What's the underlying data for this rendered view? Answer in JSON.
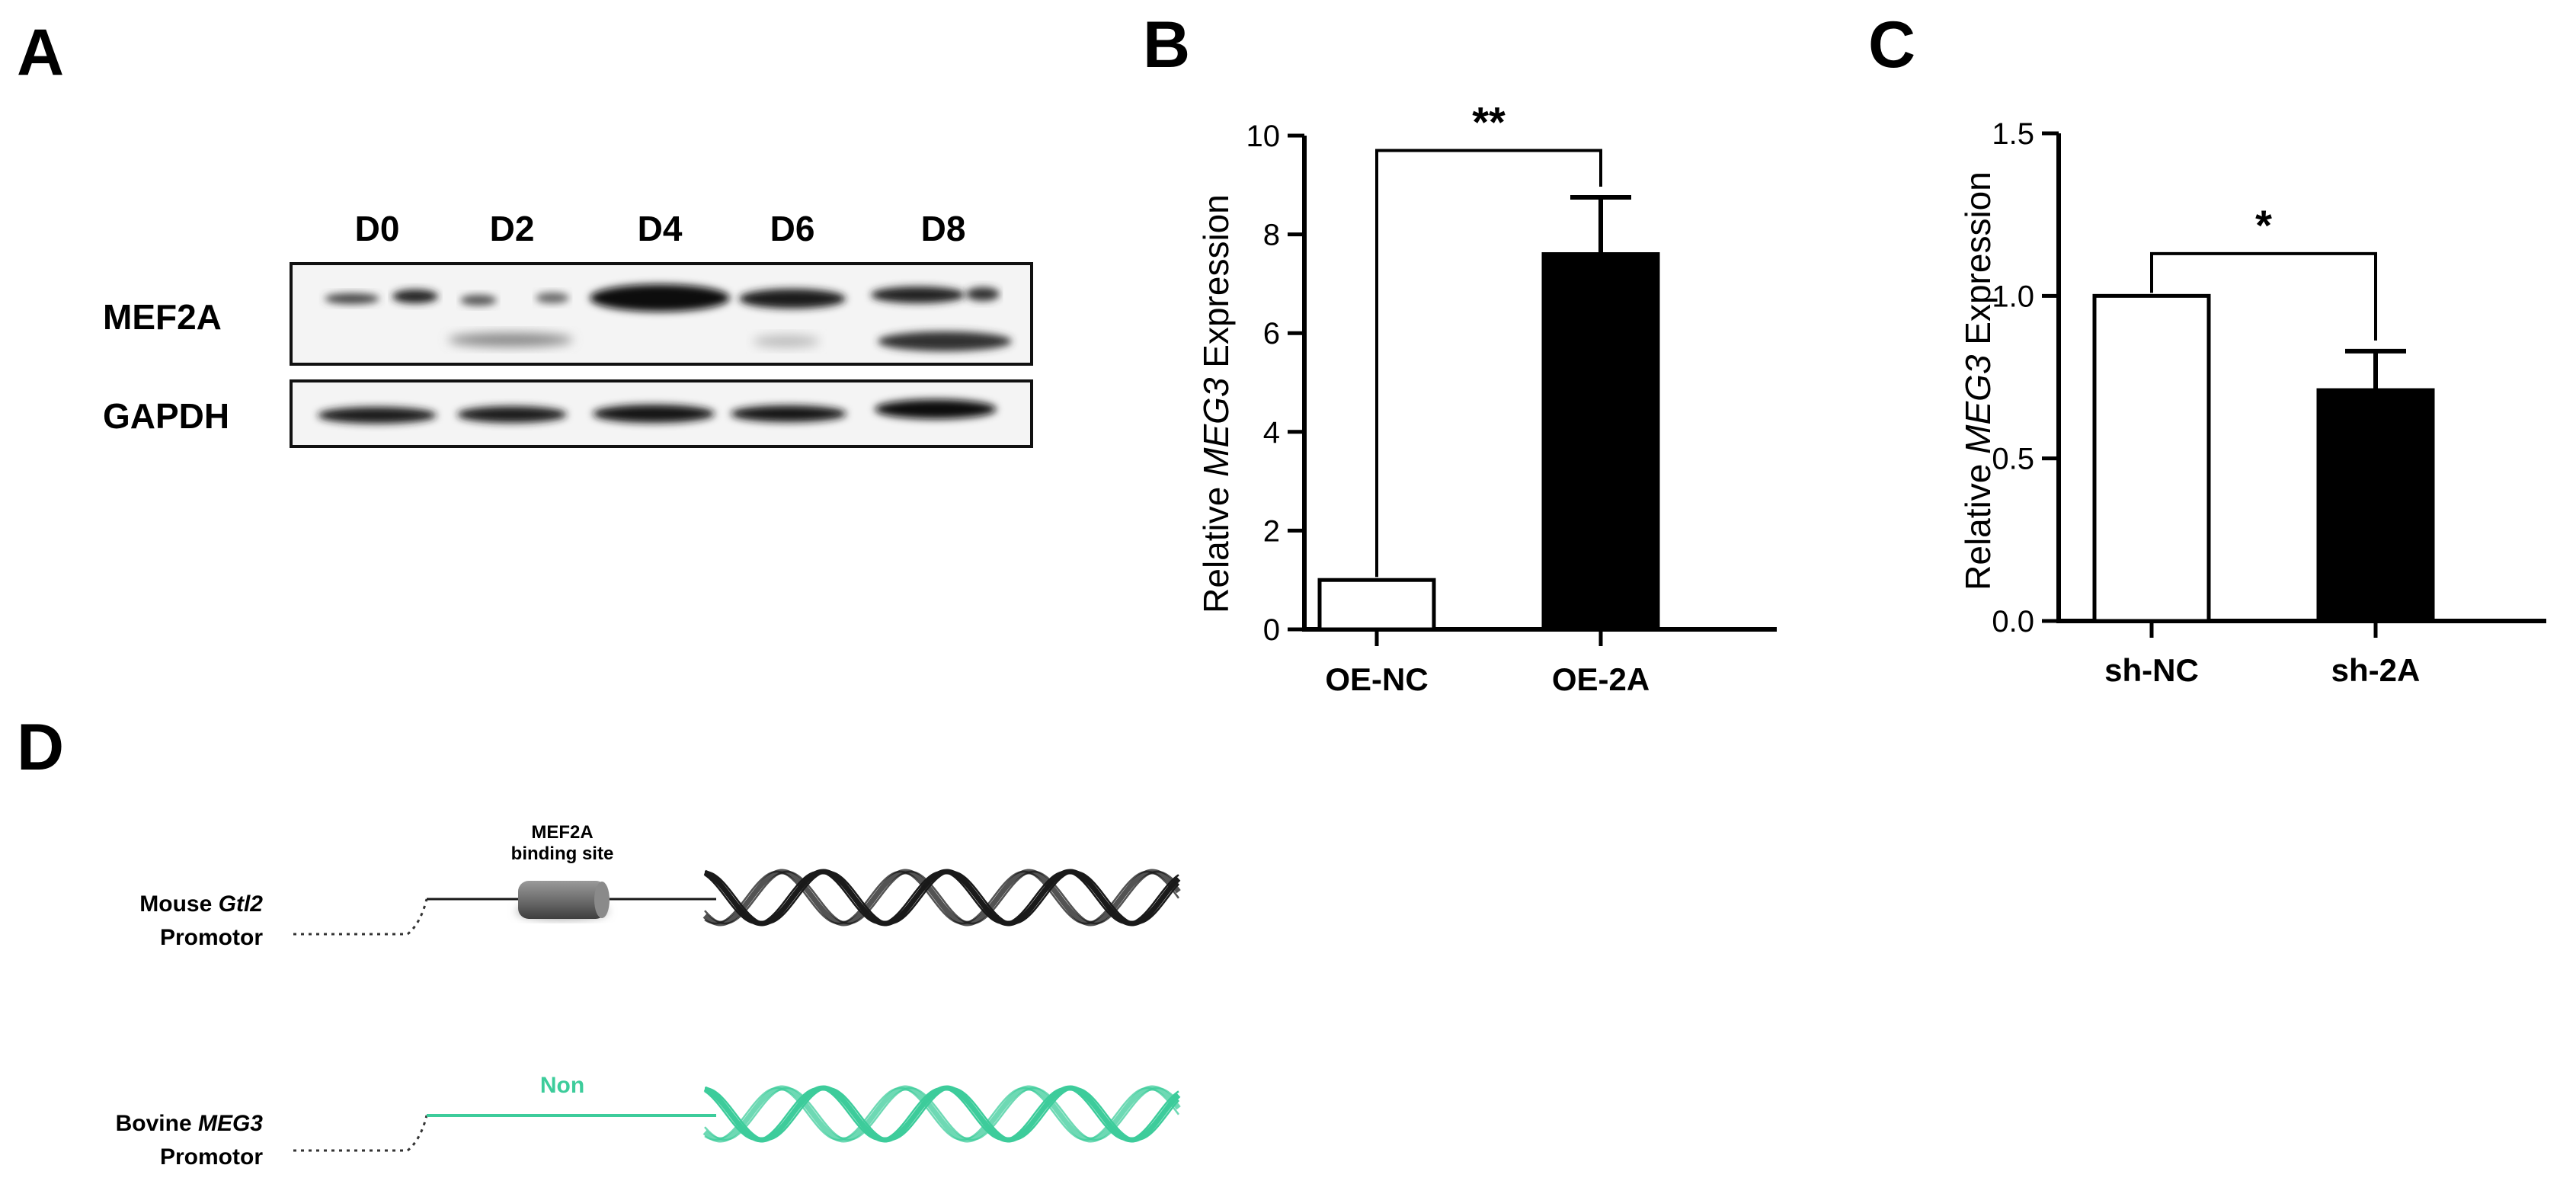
{
  "panels": {
    "a": "A",
    "b": "B",
    "c": "C",
    "d": "D"
  },
  "western_blot": {
    "lanes": [
      "D0",
      "D2",
      "D4",
      "D6",
      "D8"
    ],
    "proteins": [
      "MEF2A",
      "GAPDH"
    ]
  },
  "chart_data": [
    {
      "type": "bar",
      "panel": "B",
      "categories": [
        "OE-NC",
        "OE-2A"
      ],
      "values": [
        1.0,
        7.6
      ],
      "errors": [
        0,
        1.15
      ],
      "bar_colors": [
        "#ffffff",
        "#000000"
      ],
      "ylabel_pre": "Relative ",
      "ylabel_italic": "MEG3",
      "ylabel_post": " Expression",
      "ylim": [
        0,
        10
      ],
      "yticks": [
        "0",
        "2",
        "4",
        "6",
        "8",
        "10"
      ],
      "ytick_values": [
        0,
        2,
        4,
        6,
        8,
        10
      ],
      "significance": "**",
      "bracket_level": 9.7
    },
    {
      "type": "bar",
      "panel": "C",
      "categories": [
        "sh-NC",
        "sh-2A"
      ],
      "values": [
        1.0,
        0.71
      ],
      "errors": [
        0,
        0.12
      ],
      "bar_colors": [
        "#ffffff",
        "#000000"
      ],
      "ylabel_pre": "Relative ",
      "ylabel_italic": "MEG3",
      "ylabel_post": " Expression",
      "ylim": [
        0,
        1.5
      ],
      "yticks": [
        "0.0",
        "0.5",
        "1.0",
        "1.5"
      ],
      "ytick_values": [
        0,
        0.5,
        1.0,
        1.5
      ],
      "significance": "*",
      "bracket_level": 1.13
    }
  ],
  "diagram": {
    "mouse_line1_pre": "Mouse ",
    "mouse_line1_italic": "Gtl2",
    "mouse_line2": "Promotor",
    "binding_line1": "MEF2A",
    "binding_line2": "binding site",
    "bovine_line1_pre": "Bovine ",
    "bovine_line1_italic": "MEG3",
    "bovine_line2": "Promotor",
    "non_label": "Non",
    "mouse_color": "#1a1a1a",
    "bovine_color": "#3dcc9b"
  }
}
